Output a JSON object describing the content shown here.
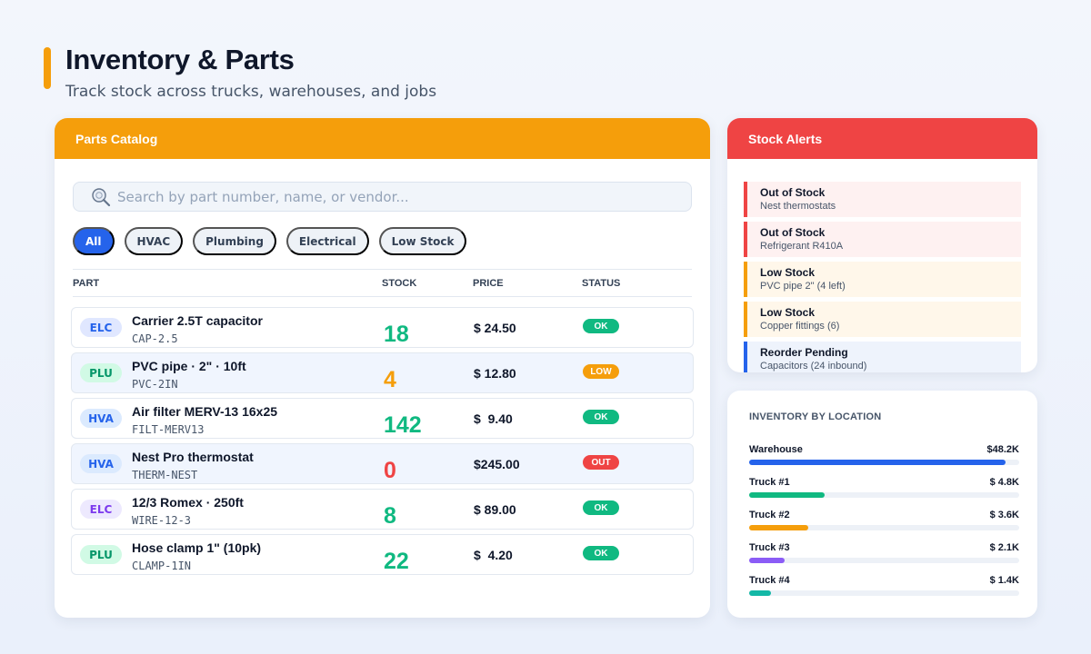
{
  "header": {
    "title": "Inventory & Parts",
    "subtitle": "Track stock across trucks, warehouses, and jobs",
    "accent_color": "#f59e0b"
  },
  "catalog": {
    "title": "Parts Catalog",
    "header_color": "#f59e0b",
    "search": {
      "placeholder": "Search by part number, name, or vendor...",
      "value": "",
      "icon": "search-icon"
    },
    "filters": [
      {
        "label": "All",
        "active": true
      },
      {
        "label": "HVAC",
        "active": false
      },
      {
        "label": "Plumbing",
        "active": false
      },
      {
        "label": "Electrical",
        "active": false
      },
      {
        "label": "Low Stock",
        "active": false
      }
    ],
    "columns": [
      "PART",
      "STOCK",
      "PRICE",
      "STATUS"
    ],
    "rows": [
      {
        "category": "ELC",
        "name": "Carrier 2.5T capacitor",
        "code": "CAP-2.5",
        "stock": "18",
        "price": "$ 24.50",
        "status": "OK"
      },
      {
        "category": "PLU",
        "name": "PVC pipe · 2\" · 10ft",
        "code": "PVC-2IN",
        "stock": "4",
        "price": "$ 12.80",
        "status": "LOW"
      },
      {
        "category": "HVA",
        "name": "Air filter MERV-13 16x25",
        "code": "FILT-MERV13",
        "stock": "142",
        "price": "$  9.40",
        "status": "OK"
      },
      {
        "category": "HVA",
        "name": "Nest Pro thermostat",
        "code": "THERM-NEST",
        "stock": "0",
        "price": "$245.00",
        "status": "OUT"
      },
      {
        "category": "ELC",
        "name": "12/3 Romex · 250ft",
        "code": "WIRE-12-3",
        "stock": "8",
        "price": "$ 89.00",
        "status": "OK"
      },
      {
        "category": "PLU",
        "name": "Hose clamp 1\" (10pk)",
        "code": "CLAMP-1IN",
        "stock": "22",
        "price": "$  4.20",
        "status": "OK"
      }
    ],
    "colors": {
      "ok": "#10b981",
      "low": "#f59e0b",
      "out": "#ef4444",
      "badge_elc_bg": "#e0e7ff",
      "badge_elc_alt_bg": "#ede9fe",
      "badge_plu_bg": "#d1fae5",
      "badge_hva_bg": "#dbeafe"
    }
  },
  "alerts": {
    "title": "Stock Alerts",
    "header_color": "#ef4444",
    "items": [
      {
        "title": "Out of Stock",
        "detail": "Nest thermostats",
        "level": "out"
      },
      {
        "title": "Out of Stock",
        "detail": "Refrigerant R410A",
        "level": "out"
      },
      {
        "title": "Low Stock",
        "detail": "PVC pipe 2\" (4 left)",
        "level": "low"
      },
      {
        "title": "Low Stock",
        "detail": "Copper fittings (6)",
        "level": "low"
      },
      {
        "title": "Reorder Pending",
        "detail": "Capacitors (24 inbound)",
        "level": "pending"
      }
    ]
  },
  "locations": {
    "title": "INVENTORY BY LOCATION",
    "items": [
      {
        "name": "Warehouse",
        "value": "$48.2K",
        "fraction": 0.95,
        "color": "#2563eb"
      },
      {
        "name": "Truck #1",
        "value": "$ 4.8K",
        "fraction": 0.28,
        "color": "#10b981"
      },
      {
        "name": "Truck #2",
        "value": "$ 3.6K",
        "fraction": 0.22,
        "color": "#f59e0b"
      },
      {
        "name": "Truck #3",
        "value": "$ 2.1K",
        "fraction": 0.13,
        "color": "#8b5cf6"
      },
      {
        "name": "Truck #4",
        "value": "$ 1.4K",
        "fraction": 0.08,
        "color": "#14b8a6"
      }
    ]
  }
}
